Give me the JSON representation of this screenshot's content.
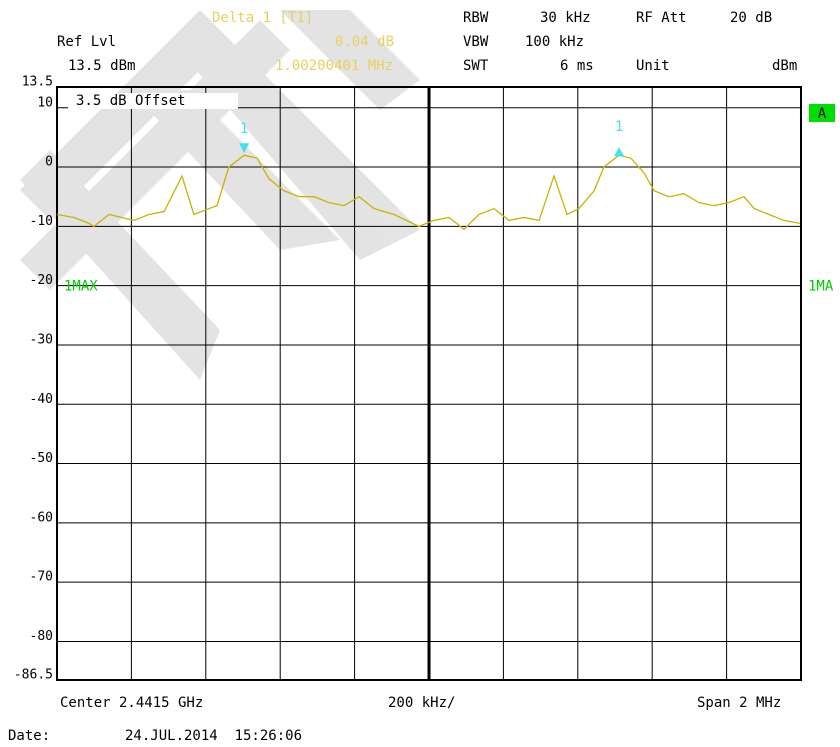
{
  "header": {
    "delta_label": "Delta 1 [T1]",
    "delta_level": "0.04 dB",
    "delta_freq": "1.00200401 MHz",
    "rbw_label": "RBW",
    "rbw_value": "30 kHz",
    "rfatt_label": "RF Att",
    "rfatt_value": "20 dB",
    "vbw_label": "VBW",
    "vbw_value": "100 kHz",
    "swt_label": "SWT",
    "swt_value": "6 ms",
    "unit_label": "Unit",
    "unit_value": "dBm",
    "ref_label": "Ref Lvl",
    "ref_value": "13.5 dBm"
  },
  "chart_data": {
    "type": "line",
    "offset_note": "3.5 dB Offset",
    "badge": "A",
    "trace_left": "1MAX",
    "trace_right": "1MA",
    "ylim": [
      13.5,
      -86.5
    ],
    "yticks": [
      13.5,
      10,
      0,
      -10,
      -20,
      -30,
      -40,
      -50,
      -60,
      -70,
      -80,
      -86.5
    ],
    "xlim": [
      -1,
      1
    ],
    "xticks": [
      -1,
      -0.8,
      -0.6,
      -0.4,
      -0.2,
      0,
      0.2,
      0.4,
      0.6,
      0.8,
      1
    ],
    "grid": true,
    "x": [
      -1.0,
      -0.954,
      -0.914,
      -0.901,
      -0.86,
      -0.793,
      -0.753,
      -0.712,
      -0.664,
      -0.632,
      -0.591,
      -0.57,
      -0.538,
      -0.497,
      -0.462,
      -0.43,
      -0.39,
      -0.349,
      -0.309,
      -0.269,
      -0.228,
      -0.188,
      -0.148,
      -0.094,
      -0.027,
      0.013,
      0.054,
      0.094,
      0.134,
      0.175,
      0.215,
      0.255,
      0.296,
      0.336,
      0.371,
      0.403,
      0.444,
      0.47,
      0.511,
      0.543,
      0.578,
      0.605,
      0.645,
      0.685,
      0.726,
      0.766,
      0.806,
      0.847,
      0.874,
      0.914,
      0.954,
      0.997
    ],
    "series": [
      {
        "color": "#c8b400",
        "values": [
          -8,
          -8.5,
          -9.5,
          -10,
          -8,
          -9,
          -8,
          -7.5,
          -1.5,
          -8,
          -7,
          -6.5,
          0,
          2,
          1.5,
          -2,
          -4,
          -5,
          -5,
          -6,
          -6.5,
          -5,
          -7,
          -8,
          -10,
          -9,
          -8.5,
          -10.5,
          -8,
          -7,
          -9,
          -8.5,
          -9,
          -1.5,
          -8,
          -7,
          -4,
          0,
          2,
          1.5,
          -1,
          -4,
          -5,
          -4.5,
          -6,
          -6.5,
          -6,
          -5,
          -7,
          -8,
          -9,
          -9.5
        ]
      }
    ],
    "markers": [
      {
        "label": "1",
        "x": -0.497,
        "y": 2,
        "color": "#40e0f0"
      },
      {
        "label": "1",
        "x": 0.511,
        "y": 2,
        "color": "#40e0f0"
      }
    ],
    "footer_center": "Center 2.4415 GHz",
    "footer_div": "200 kHz/",
    "footer_span": "Span 2 MHz"
  },
  "footer": {
    "date_label": "Date:",
    "date_value": "24.JUL.2014  15:26:06"
  }
}
